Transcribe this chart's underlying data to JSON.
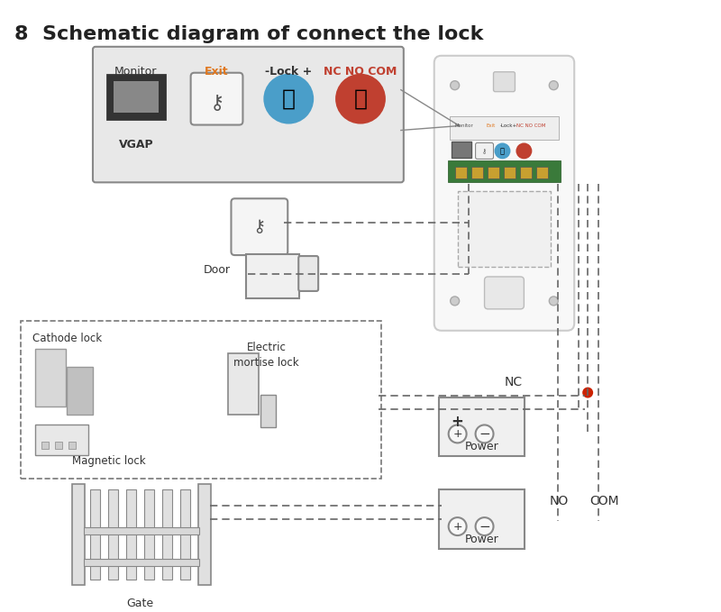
{
  "title": "8  Schematic diagram of connect the lock",
  "title_fontsize": 16,
  "bg_color": "#ffffff",
  "panel_bg": "#e8e8e8",
  "panel_border": "#888888",
  "label_monitor": "Monitor",
  "label_exit": "Exit",
  "label_lock": "-Lock +",
  "label_nc_no_com": "NC NO COM",
  "label_vgap": "VGAP",
  "label_door": "Door",
  "label_cathode": "Cathode lock",
  "label_magnetic": "Magnetic lock",
  "label_electric": "Electric\nmortise lock",
  "label_gate": "Gate",
  "label_power": "Power",
  "label_nc": "NC",
  "label_no": "NO",
  "label_com": "COM",
  "color_exit": "#e07820",
  "color_lock_bg": "#4a9ec9",
  "color_nc_no_com_bg": "#c04030",
  "color_nc_label": "#c04030",
  "color_no_label": "#333333",
  "color_com_label": "#333333",
  "color_dashed": "#666666",
  "color_red_dot": "#cc2200",
  "color_device_bg": "#f0f0f0",
  "color_device_border": "#aaaaaa",
  "color_wire": "#444444",
  "color_green_board": "#3a7a3a"
}
